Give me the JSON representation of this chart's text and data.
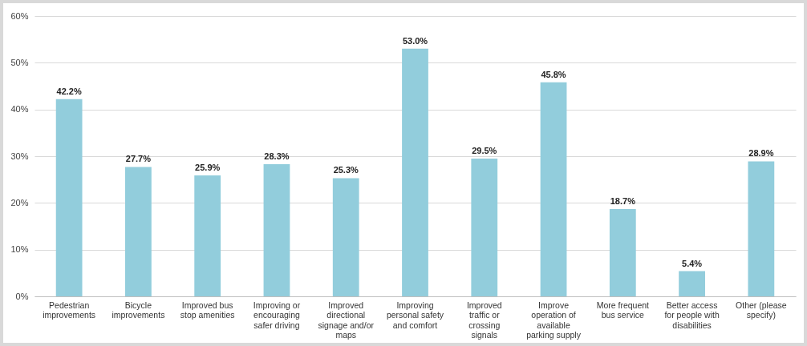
{
  "chart_data": {
    "type": "bar",
    "categories": [
      "Pedestrian improvements",
      "Bicycle improvements",
      "Improved bus stop amenities",
      "Improving or encouraging safer driving",
      "Improved directional signage and/or maps",
      "Improving personal safety and comfort",
      "Improved traffic or crossing signals",
      "Improve operation of available parking supply",
      "More frequent bus service",
      "Better access for people with disabilities",
      "Other (please specify)"
    ],
    "values": [
      42.2,
      27.7,
      25.9,
      28.3,
      25.3,
      53.0,
      29.5,
      45.8,
      18.7,
      5.4,
      28.9
    ],
    "value_labels": [
      "42.2%",
      "27.7%",
      "25.9%",
      "28.3%",
      "25.3%",
      "53.0%",
      "29.5%",
      "45.8%",
      "18.7%",
      "5.4%",
      "28.9%"
    ],
    "color": "#92cddc",
    "ylim": [
      0,
      60
    ],
    "yticks": [
      {
        "value": 0,
        "label": "0%"
      },
      {
        "value": 10,
        "label": "10%"
      },
      {
        "value": 20,
        "label": "20%"
      },
      {
        "value": 30,
        "label": "30%"
      },
      {
        "value": 40,
        "label": "40%"
      },
      {
        "value": 50,
        "label": "50%"
      },
      {
        "value": 60,
        "label": "60%"
      }
    ],
    "grid": "y"
  }
}
